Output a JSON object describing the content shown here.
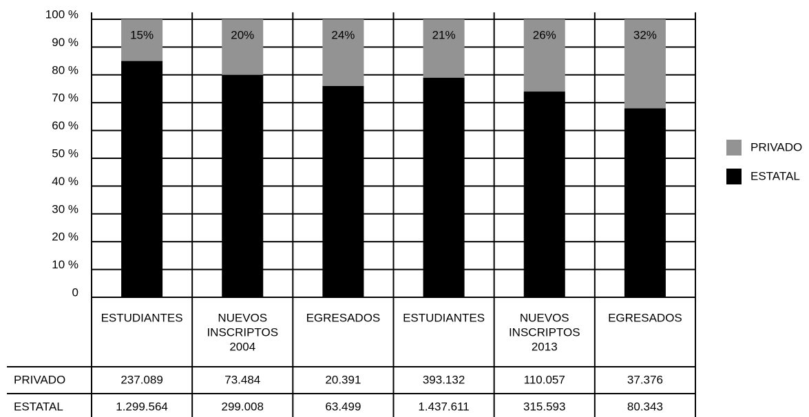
{
  "chart_data": {
    "type": "stacked-bar",
    "categories": [
      [
        "ESTUDIANTES"
      ],
      [
        "NUEVOS",
        "INSCRIPTOS",
        "2004"
      ],
      [
        "EGRESADOS"
      ],
      [
        "ESTUDIANTES"
      ],
      [
        "NUEVOS",
        "INSCRIPTOS",
        "2013"
      ],
      [
        "EGRESADOS"
      ]
    ],
    "series": [
      {
        "name": "ESTATAL",
        "color": "#000000",
        "values": [
          85,
          80,
          76,
          79,
          74,
          68
        ],
        "value_labels": [
          "85%",
          "80%",
          "76%",
          "79%",
          "74%",
          "68%"
        ]
      },
      {
        "name": "PRIVADO",
        "color": "#939393",
        "values": [
          15,
          20,
          24,
          21,
          26,
          32
        ],
        "value_labels": [
          "15%",
          "20%",
          "24%",
          "21%",
          "26%",
          "32%"
        ]
      }
    ],
    "ylim": [
      0,
      100
    ],
    "yticks": [
      0,
      {
        "value": 10,
        "label": "10 %"
      },
      {
        "value": 20,
        "label": "20 %"
      },
      {
        "value": 30,
        "label": "30 %"
      },
      {
        "value": 40,
        "label": "40 %"
      },
      {
        "value": 50,
        "label": "50 %"
      },
      {
        "value": 60,
        "label": "60 %"
      },
      {
        "value": 70,
        "label": "70 %"
      },
      {
        "value": 80,
        "label": "80 %"
      },
      {
        "value": 90,
        "label": "90 %"
      },
      {
        "value": 100,
        "label": "100 %"
      }
    ],
    "grid": true,
    "legend": "right"
  },
  "table": {
    "rows": [
      {
        "label": "PRIVADO",
        "cells": [
          "237.089",
          "73.484",
          "20.391",
          "393.132",
          "110.057",
          "37.376"
        ]
      },
      {
        "label": "ESTATAL",
        "cells": [
          "1.299.564",
          "299.008",
          "63.499",
          "1.437.611",
          "315.593",
          "80.343"
        ]
      }
    ]
  }
}
